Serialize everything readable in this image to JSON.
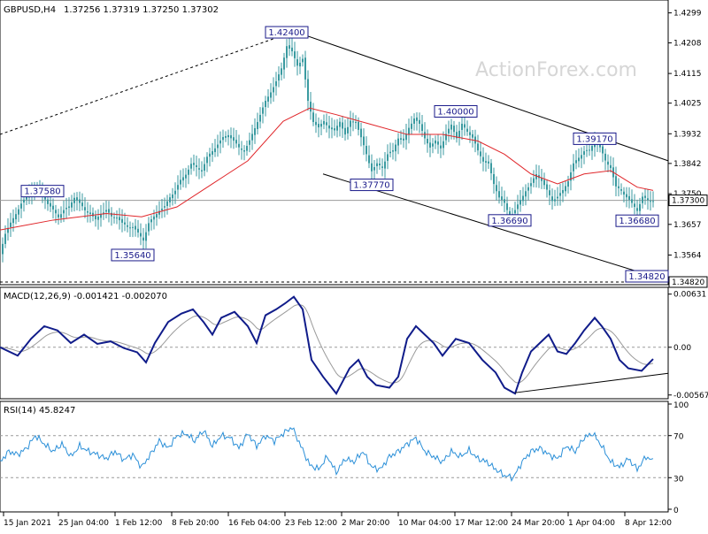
{
  "header": {
    "symbol": "GBPUSD,H4",
    "ohlc": "1.37256 1.37319 1.37250 1.37302",
    "watermark": "ActionForex.com"
  },
  "colors": {
    "candle": "#3a9aa0",
    "ma": "#e0262a",
    "macd_line": "#101c8a",
    "macd_signal": "#9a9a9a",
    "rsi_line": "#2a8fd8",
    "annotation": "#1a1a8a"
  },
  "panels": {
    "macd": {
      "label": "MACD(12,26,9) -0.001421 -0.002070",
      "ticks": [
        "0.00631",
        "0.00",
        "-0.005671"
      ]
    },
    "rsi": {
      "label": "RSI(14) 45.8247",
      "ticks": [
        "100",
        "70",
        "30",
        "0"
      ]
    }
  },
  "x_axis": {
    "labels": [
      "15 Jan 2021",
      "25 Jan 04:00",
      "1 Feb 12:00",
      "8 Feb 20:00",
      "16 Feb 04:00",
      "23 Feb 12:00",
      "2 Mar 20:00",
      "10 Mar 04:00",
      "17 Mar 12:00",
      "24 Mar 20:00",
      "1 Apr 04:00",
      "8 Apr 12:00"
    ]
  },
  "chart_data": [
    {
      "type": "candlestick",
      "panel": "price",
      "title": "GBPUSD,H4",
      "ylim": [
        1.3482,
        1.433
      ],
      "y_ticks": [
        1.4299,
        1.4208,
        1.4115,
        1.4025,
        1.3932,
        1.3842,
        1.375,
        1.3657,
        1.3564
      ],
      "current_price": 1.373,
      "path": [
        [
          0,
          1.357
        ],
        [
          6,
          1.363
        ],
        [
          12,
          1.366
        ],
        [
          18,
          1.369
        ],
        [
          24,
          1.372
        ],
        [
          30,
          1.374
        ],
        [
          36,
          1.376
        ],
        [
          42,
          1.377
        ],
        [
          48,
          1.375
        ],
        [
          54,
          1.372
        ],
        [
          60,
          1.37
        ],
        [
          66,
          1.368
        ],
        [
          72,
          1.37
        ],
        [
          78,
          1.371
        ],
        [
          84,
          1.374
        ],
        [
          90,
          1.372
        ],
        [
          96,
          1.37
        ],
        [
          102,
          1.369
        ],
        [
          108,
          1.367
        ],
        [
          114,
          1.369
        ],
        [
          120,
          1.37
        ],
        [
          126,
          1.368
        ],
        [
          132,
          1.368
        ],
        [
          138,
          1.366
        ],
        [
          144,
          1.365
        ],
        [
          150,
          1.365
        ],
        [
          156,
          1.363
        ],
        [
          162,
          1.361
        ],
        [
          168,
          1.366
        ],
        [
          174,
          1.368
        ],
        [
          180,
          1.37
        ],
        [
          186,
          1.371
        ],
        [
          192,
          1.374
        ],
        [
          198,
          1.376
        ],
        [
          204,
          1.379
        ],
        [
          210,
          1.381
        ],
        [
          216,
          1.384
        ],
        [
          222,
          1.383
        ],
        [
          228,
          1.382
        ],
        [
          234,
          1.386
        ],
        [
          240,
          1.388
        ],
        [
          246,
          1.39
        ],
        [
          252,
          1.392
        ],
        [
          258,
          1.393
        ],
        [
          264,
          1.391
        ],
        [
          270,
          1.389
        ],
        [
          276,
          1.388
        ],
        [
          282,
          1.391
        ],
        [
          288,
          1.395
        ],
        [
          294,
          1.399
        ],
        [
          300,
          1.403
        ],
        [
          306,
          1.406
        ],
        [
          312,
          1.409
        ],
        [
          318,
          1.413
        ],
        [
          324,
          1.42
        ],
        [
          330,
          1.418
        ],
        [
          336,
          1.414
        ],
        [
          342,
          1.416
        ],
        [
          348,
          1.403
        ],
        [
          354,
          1.397
        ],
        [
          360,
          1.395
        ],
        [
          366,
          1.397
        ],
        [
          372,
          1.395
        ],
        [
          378,
          1.394
        ],
        [
          384,
          1.397
        ],
        [
          390,
          1.393
        ],
        [
          396,
          1.397
        ],
        [
          402,
          1.397
        ],
        [
          408,
          1.392
        ],
        [
          414,
          1.387
        ],
        [
          420,
          1.382
        ],
        [
          426,
          1.384
        ],
        [
          432,
          1.383
        ],
        [
          438,
          1.387
        ],
        [
          444,
          1.388
        ],
        [
          450,
          1.392
        ],
        [
          456,
          1.391
        ],
        [
          462,
          1.395
        ],
        [
          468,
          1.398
        ],
        [
          474,
          1.396
        ],
        [
          480,
          1.392
        ],
        [
          486,
          1.389
        ],
        [
          492,
          1.391
        ],
        [
          498,
          1.389
        ],
        [
          504,
          1.393
        ],
        [
          510,
          1.396
        ],
        [
          516,
          1.392
        ],
        [
          522,
          1.396
        ],
        [
          528,
          1.394
        ],
        [
          534,
          1.392
        ],
        [
          540,
          1.388
        ],
        [
          546,
          1.385
        ],
        [
          552,
          1.384
        ],
        [
          558,
          1.378
        ],
        [
          564,
          1.374
        ],
        [
          570,
          1.372
        ],
        [
          576,
          1.368
        ],
        [
          582,
          1.37
        ],
        [
          588,
          1.373
        ],
        [
          594,
          1.376
        ],
        [
          600,
          1.378
        ],
        [
          606,
          1.381
        ],
        [
          612,
          1.379
        ],
        [
          618,
          1.376
        ],
        [
          624,
          1.373
        ],
        [
          630,
          1.374
        ],
        [
          636,
          1.376
        ],
        [
          642,
          1.379
        ],
        [
          648,
          1.384
        ],
        [
          654,
          1.386
        ],
        [
          660,
          1.388
        ],
        [
          666,
          1.388
        ],
        [
          672,
          1.391
        ],
        [
          678,
          1.389
        ],
        [
          684,
          1.385
        ],
        [
          690,
          1.383
        ],
        [
          696,
          1.377
        ],
        [
          702,
          1.376
        ],
        [
          708,
          1.374
        ],
        [
          714,
          1.372
        ],
        [
          720,
          1.37
        ],
        [
          726,
          1.374
        ],
        [
          732,
          1.373
        ],
        [
          738,
          1.373
        ]
      ],
      "moving_average": [
        [
          0,
          1.364
        ],
        [
          60,
          1.367
        ],
        [
          120,
          1.369
        ],
        [
          160,
          1.368
        ],
        [
          200,
          1.371
        ],
        [
          240,
          1.378
        ],
        [
          280,
          1.385
        ],
        [
          320,
          1.397
        ],
        [
          350,
          1.401
        ],
        [
          380,
          1.399
        ],
        [
          420,
          1.396
        ],
        [
          460,
          1.393
        ],
        [
          500,
          1.393
        ],
        [
          540,
          1.391
        ],
        [
          570,
          1.387
        ],
        [
          600,
          1.381
        ],
        [
          630,
          1.378
        ],
        [
          660,
          1.381
        ],
        [
          690,
          1.382
        ],
        [
          720,
          1.377
        ],
        [
          738,
          1.376
        ]
      ],
      "annotations": [
        {
          "label": "1.42400",
          "x": 324,
          "y": 1.424
        },
        {
          "label": "1.37580",
          "x": 48,
          "y": 1.3758
        },
        {
          "label": "1.35640",
          "x": 150,
          "y": 1.3564
        },
        {
          "label": "1.37770",
          "x": 420,
          "y": 1.3777
        },
        {
          "label": "1.40000",
          "x": 515,
          "y": 1.4
        },
        {
          "label": "1.36690",
          "x": 576,
          "y": 1.3669
        },
        {
          "label": "1.39170",
          "x": 672,
          "y": 1.3917
        },
        {
          "label": "1.36680",
          "x": 720,
          "y": 1.3668
        },
        {
          "label": "1.34820",
          "x": 755,
          "y": 1.3482
        }
      ],
      "channel_upper": [
        [
          330,
          1.4245
        ],
        [
          755,
          1.385
        ]
      ],
      "channel_lower": [
        [
          365,
          1.381
        ],
        [
          755,
          1.3485
        ]
      ],
      "dotted_trend": [
        [
          0,
          1.393
        ],
        [
          330,
          1.424
        ]
      ]
    },
    {
      "type": "line",
      "panel": "macd",
      "title": "MACD(12,26,9)",
      "ylim": [
        -0.0058,
        0.0068
      ],
      "series": [
        {
          "name": "macd",
          "points": [
            [
              0,
              0.0
            ],
            [
              20,
              -0.001
            ],
            [
              35,
              0.001
            ],
            [
              50,
              0.0025
            ],
            [
              65,
              0.002
            ],
            [
              80,
              0.0005
            ],
            [
              95,
              0.0015
            ],
            [
              110,
              0.0004
            ],
            [
              125,
              0.0007
            ],
            [
              140,
              -0.0001
            ],
            [
              155,
              -0.0006
            ],
            [
              165,
              -0.0018
            ],
            [
              175,
              0.0005
            ],
            [
              190,
              0.003
            ],
            [
              205,
              0.004
            ],
            [
              218,
              0.0045
            ],
            [
              230,
              0.003
            ],
            [
              240,
              0.0015
            ],
            [
              250,
              0.0035
            ],
            [
              265,
              0.0042
            ],
            [
              280,
              0.0025
            ],
            [
              290,
              0.0005
            ],
            [
              300,
              0.0038
            ],
            [
              312,
              0.0045
            ],
            [
              322,
              0.0052
            ],
            [
              332,
              0.006
            ],
            [
              342,
              0.0045
            ],
            [
              352,
              -0.0015
            ],
            [
              365,
              -0.0035
            ],
            [
              380,
              -0.0055
            ],
            [
              395,
              -0.0025
            ],
            [
              405,
              -0.0015
            ],
            [
              415,
              -0.0035
            ],
            [
              425,
              -0.0045
            ],
            [
              440,
              -0.0048
            ],
            [
              450,
              -0.0035
            ],
            [
              460,
              0.001
            ],
            [
              470,
              0.0025
            ],
            [
              480,
              0.0015
            ],
            [
              490,
              0.0005
            ],
            [
              500,
              -0.001
            ],
            [
              515,
              0.001
            ],
            [
              530,
              0.0005
            ],
            [
              545,
              -0.0015
            ],
            [
              560,
              -0.003
            ],
            [
              570,
              -0.0048
            ],
            [
              582,
              -0.0055
            ],
            [
              590,
              -0.003
            ],
            [
              600,
              -0.0005
            ],
            [
              610,
              0.0005
            ],
            [
              620,
              0.0015
            ],
            [
              630,
              -0.0005
            ],
            [
              640,
              -0.0008
            ],
            [
              650,
              0.0005
            ],
            [
              660,
              0.002
            ],
            [
              672,
              0.0035
            ],
            [
              680,
              0.0025
            ],
            [
              690,
              0.001
            ],
            [
              700,
              -0.0015
            ],
            [
              710,
              -0.0025
            ],
            [
              725,
              -0.0028
            ],
            [
              738,
              -0.0014
            ]
          ]
        }
      ]
    },
    {
      "type": "line",
      "panel": "rsi",
      "title": "RSI(14)",
      "ylim": [
        0,
        100
      ],
      "series": [
        {
          "name": "rsi",
          "points": [
            [
              0,
              45
            ],
            [
              10,
              55
            ],
            [
              20,
              52
            ],
            [
              30,
              58
            ],
            [
              40,
              70
            ],
            [
              50,
              62
            ],
            [
              60,
              55
            ],
            [
              70,
              62
            ],
            [
              80,
              50
            ],
            [
              90,
              60
            ],
            [
              100,
              55
            ],
            [
              110,
              52
            ],
            [
              120,
              48
            ],
            [
              130,
              55
            ],
            [
              140,
              47
            ],
            [
              150,
              52
            ],
            [
              160,
              40
            ],
            [
              170,
              52
            ],
            [
              180,
              65
            ],
            [
              190,
              58
            ],
            [
              200,
              70
            ],
            [
              210,
              72
            ],
            [
              220,
              65
            ],
            [
              230,
              75
            ],
            [
              240,
              60
            ],
            [
              250,
              70
            ],
            [
              260,
              68
            ],
            [
              270,
              58
            ],
            [
              280,
              72
            ],
            [
              290,
              60
            ],
            [
              300,
              70
            ],
            [
              310,
              65
            ],
            [
              320,
              72
            ],
            [
              330,
              78
            ],
            [
              340,
              60
            ],
            [
              350,
              42
            ],
            [
              360,
              38
            ],
            [
              370,
              50
            ],
            [
              380,
              35
            ],
            [
              390,
              48
            ],
            [
              400,
              45
            ],
            [
              410,
              55
            ],
            [
              420,
              40
            ],
            [
              430,
              38
            ],
            [
              440,
              50
            ],
            [
              450,
              55
            ],
            [
              460,
              62
            ],
            [
              470,
              68
            ],
            [
              480,
              55
            ],
            [
              490,
              50
            ],
            [
              500,
              45
            ],
            [
              510,
              55
            ],
            [
              520,
              50
            ],
            [
              530,
              56
            ],
            [
              540,
              48
            ],
            [
              550,
              45
            ],
            [
              560,
              38
            ],
            [
              570,
              32
            ],
            [
              580,
              30
            ],
            [
              590,
              45
            ],
            [
              600,
              55
            ],
            [
              610,
              58
            ],
            [
              620,
              52
            ],
            [
              630,
              48
            ],
            [
              640,
              60
            ],
            [
              650,
              55
            ],
            [
              660,
              68
            ],
            [
              670,
              72
            ],
            [
              680,
              60
            ],
            [
              690,
              45
            ],
            [
              700,
              40
            ],
            [
              710,
              48
            ],
            [
              720,
              38
            ],
            [
              730,
              50
            ],
            [
              738,
              46
            ]
          ]
        }
      ]
    }
  ]
}
